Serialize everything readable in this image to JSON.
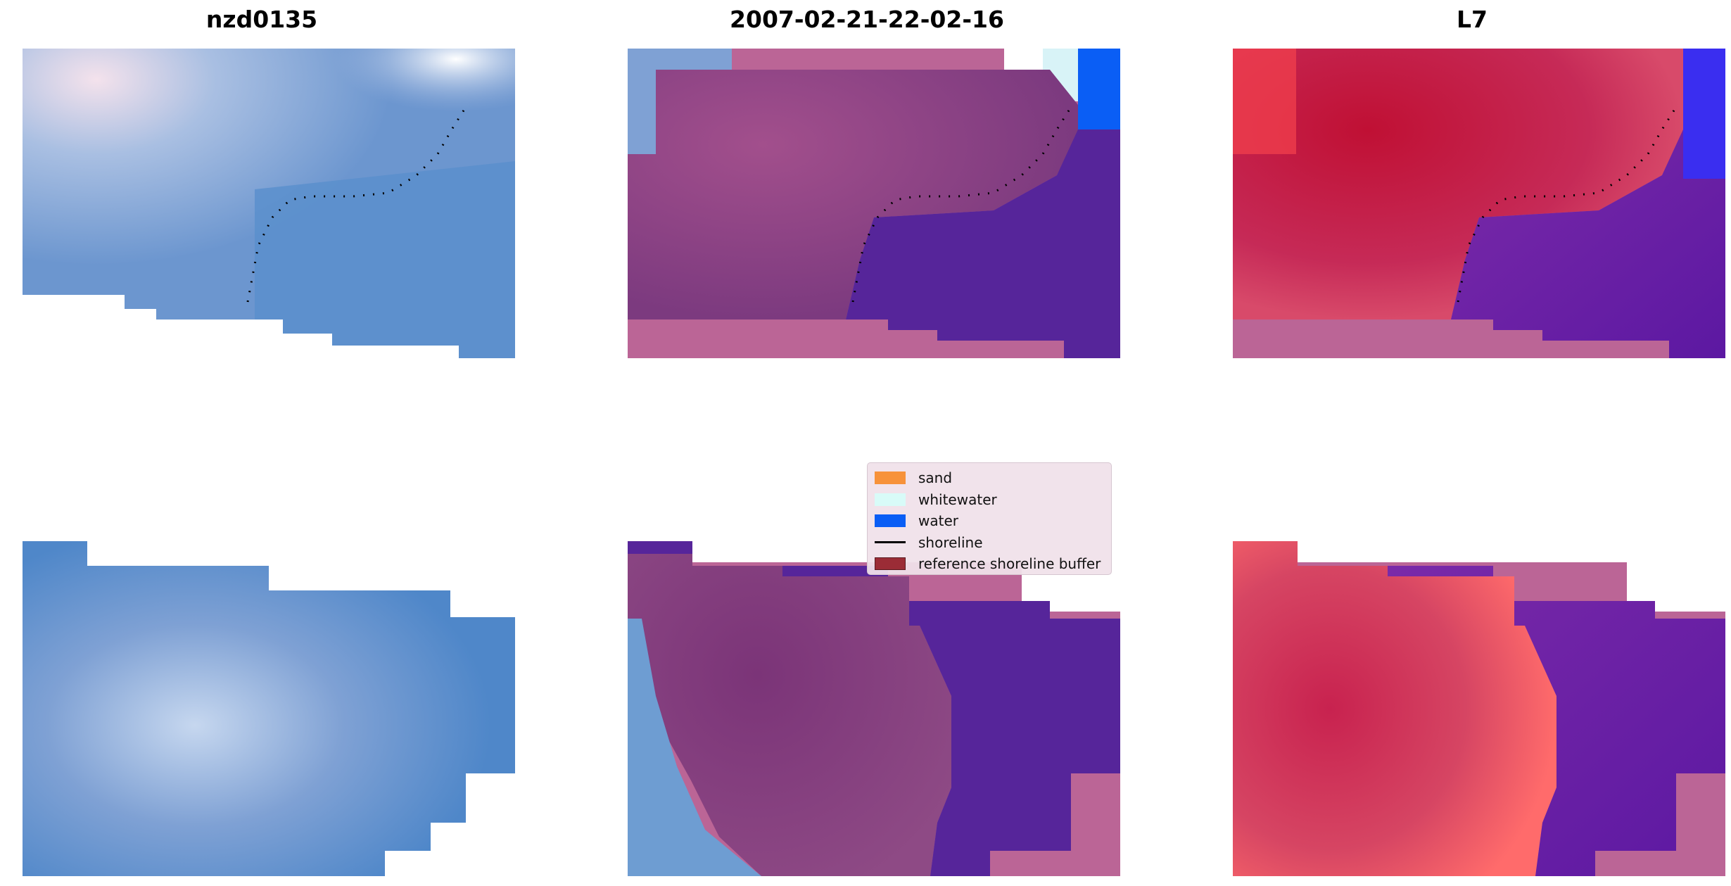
{
  "panels": [
    {
      "title": "nzd0135"
    },
    {
      "title": "2007-02-21-22-02-16"
    },
    {
      "title": "L7"
    }
  ],
  "colors": {
    "background": "#ffffff",
    "rgb_blue": "#5b8fc9",
    "class_overlay_pink": "#bb6596",
    "class_overlay_purple": "#56259a",
    "class_overlay_magenta": "#8a3d80",
    "index_red": "#c4204c",
    "index_purple": "#6a1fa8"
  },
  "legend": {
    "items": [
      {
        "label": "sand",
        "color": "#f7923a",
        "kind": "patch"
      },
      {
        "label": "whitewater",
        "color": "#d8fbf8",
        "kind": "patch"
      },
      {
        "label": "water",
        "color": "#0a5ef5",
        "kind": "patch"
      },
      {
        "label": "shoreline",
        "color": "#000000",
        "kind": "line"
      },
      {
        "label": "reference shoreline buffer",
        "color": "#9b2c36",
        "kind": "patch"
      }
    ]
  }
}
